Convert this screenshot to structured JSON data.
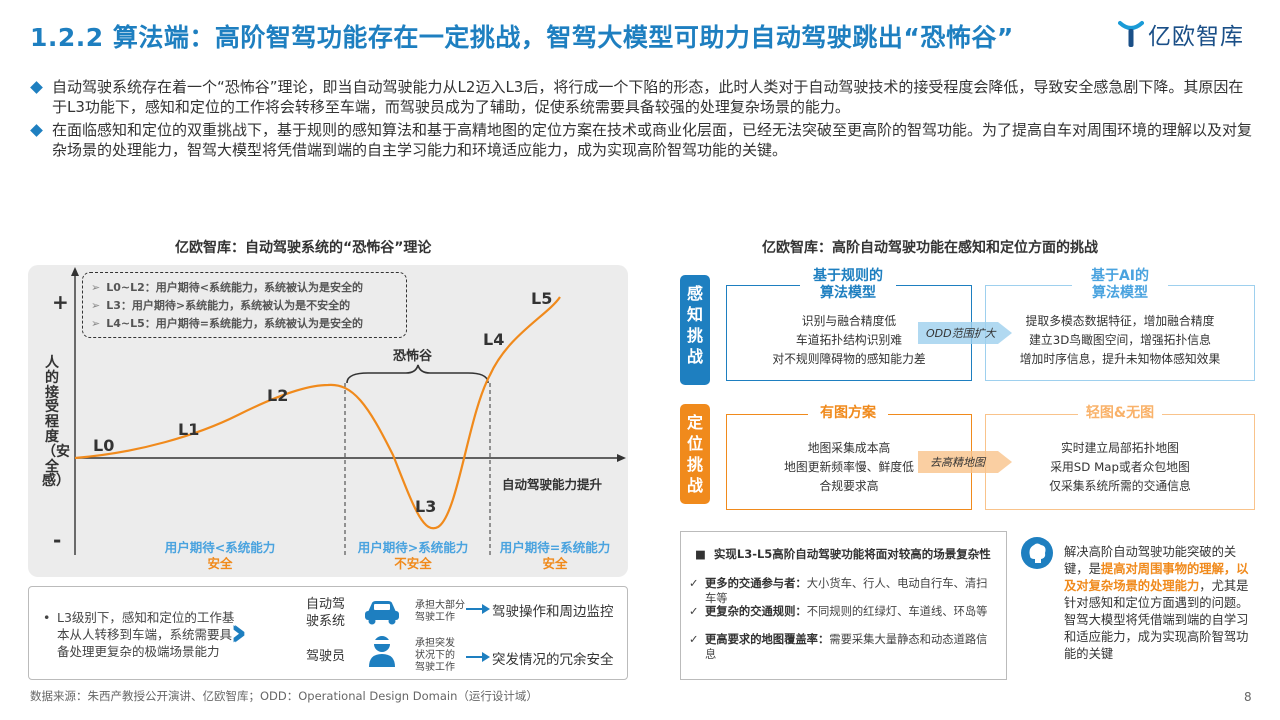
{
  "header": {
    "title": "1.2.2 算法端：高阶智驾功能存在一定挑战，智驾大模型可助力自动驾驶跳出“恐怖谷”",
    "logo_text": "亿欧智库"
  },
  "bullets": [
    "自动驾驶系统存在着一个“恐怖谷”理论，即当自动驾驶能力从L2迈入L3后，将行成一个下陷的形态，此时人类对于自动驾驶技术的接受程度会降低，导致安全感急剧下降。其原因在于L3功能下，感知和定位的工作将会转移至车端，而驾驶员成为了辅助，促使系统需要具备较强的处理复杂场景的能力。",
    "在面临感知和定位的双重挑战下，基于规则的感知算法和基于高精地图的定位方案在技术或商业化层面，已经无法突破至更高阶的智驾功能。为了提高自车对周围环境的理解以及对复杂场景的处理能力，智驾大模型将凭借端到端的自主学习能力和环境适应能力，成为实现高阶智驾功能的关键。"
  ],
  "left": {
    "title": "亿欧智库：自动驾驶系统的“恐怖谷”理论",
    "legend": [
      "L0~L2：用户期待<系统能力，系统被认为是安全的",
      "L3：用户期待>系统能力，系统被认为是不安全的",
      "L4~L5：用户期待=系统能力，系统被认为是安全的"
    ],
    "y_label": "人的接受程度（安全感）",
    "plus": "+",
    "minus": "-",
    "x_label": "自动驾驶能力提升",
    "valley": "恐怖谷",
    "zones": [
      {
        "line1": "用户期待<系统能力",
        "line2": "安全"
      },
      {
        "line1": "用户期待>系统能力",
        "line2": "不安全"
      },
      {
        "line1": "用户期待=系统能力",
        "line2": "安全"
      }
    ]
  },
  "chart_data": {
    "type": "line",
    "title": "亿欧智库：自动驾驶系统的“恐怖谷”理论",
    "xlabel": "自动驾驶能力提升",
    "ylabel": "人的接受程度（安全感）",
    "points": [
      {
        "label": "L0",
        "x": 0,
        "y": 0
      },
      {
        "label": "L1",
        "x": 1,
        "y": 0.8
      },
      {
        "label": "L2",
        "x": 2,
        "y": 3.2
      },
      {
        "label": "L3",
        "x": 3,
        "y": -3.8
      },
      {
        "label": "L4",
        "x": 4,
        "y": 5.1
      },
      {
        "label": "L5",
        "x": 5,
        "y": 7.4
      }
    ]
  },
  "bottom_left": {
    "text": [
      "L3级别下，感知和定位的工作基",
      "本从人转移到车端，系统需要具",
      "备处理更复杂的极端场景能力"
    ],
    "rows": [
      {
        "role": [
          "自动驾",
          "驶系统"
        ],
        "task": [
          "承担大部分",
          "驾驶工作"
        ],
        "result": "驾驶操作和周边监控"
      },
      {
        "role": [
          "驾驶员"
        ],
        "task": [
          "承担突发",
          "状况下的",
          "驾驶工作"
        ],
        "result": "突发情况的冗余安全"
      }
    ]
  },
  "right": {
    "title": "亿欧智库：高阶自动驾驶功能在感知和定位方面的挑战",
    "tab_perception": "感知挑战",
    "tab_positioning": "定位挑战",
    "p1": {
      "head": [
        "基于规则的",
        "算法模型"
      ],
      "lines": [
        "识别与融合精度低",
        "车道拓扑结构识别难",
        "对不规则障碍物的感知能力差"
      ]
    },
    "p2": {
      "head": [
        "基于AI的",
        "算法模型"
      ],
      "lines": [
        "提取多模态数据特征，增加融合精度",
        "建立3D鸟瞰图空间，增强拓扑信息",
        "增加时序信息，提升未知物体感知效果"
      ]
    },
    "conn1": "ODD范围扩大",
    "p3": {
      "head": [
        "有图方案"
      ],
      "lines": [
        "地图采集成本高",
        "地图更新频率慢、鲜度低",
        "合规要求高"
      ]
    },
    "p4": {
      "head": [
        "轻图&无图"
      ],
      "lines": [
        "实时建立局部拓扑地图",
        "采用SD Map或者众包地图",
        "仅采集系统所需的交通信息"
      ]
    },
    "conn2": "去高精地图",
    "box_head": "实现L3-L5高阶自动驾驶功能将面对较高的场景复杂性",
    "items": [
      {
        "bold": "更多的交通参与者：",
        "text": "大小货车、行人、电动自行车、清扫车等"
      },
      {
        "bold": "更复杂的交通规则：",
        "text": "不同规则的红绿灯、车道线、环岛等"
      },
      {
        "bold": "更高要求的地图覆盖率：",
        "text": "需要采集大量静态和动态道路信息"
      }
    ],
    "conclusion": {
      "pre": "解决高阶自动驾驶功能突破的关键，是",
      "hl": "提高对周围事物的理解，以及对复杂场景的处理能力",
      "post": "，尤其是针对感知和定位方面遇到的问题。智驾大模型将凭借端到端的自学习和适应能力，成为实现高阶智驾功能的关键"
    }
  },
  "footer": {
    "source": "数据来源：朱西产教授公开演讲、亿欧智库；ODD：Operational Design Domain（运行设计域）",
    "page": "8"
  },
  "colors": {
    "blue": "#1e7fc0",
    "orange": "#f08a1c",
    "light_blue": "#4aa3df"
  }
}
